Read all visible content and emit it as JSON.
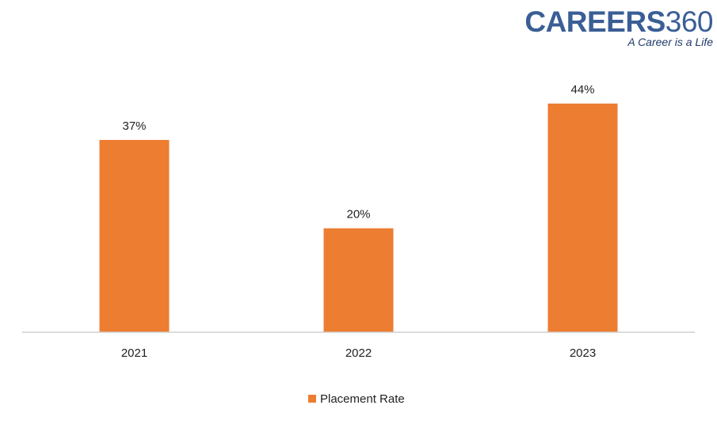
{
  "logo": {
    "word": "CAREERS",
    "number": "360",
    "tagline": "A Career is a Life",
    "color": "#3a5e95"
  },
  "chart_data": {
    "type": "bar",
    "categories": [
      "2021",
      "2022",
      "2023"
    ],
    "series": [
      {
        "name": "Placement Rate",
        "values": [
          37,
          20,
          44
        ],
        "labels": [
          "37%",
          "20%",
          "44%"
        ],
        "color": "#ed7d31"
      }
    ],
    "title": "",
    "xlabel": "",
    "ylabel": "",
    "ylim": [
      0,
      50
    ],
    "grid": false,
    "legend_position": "bottom"
  }
}
